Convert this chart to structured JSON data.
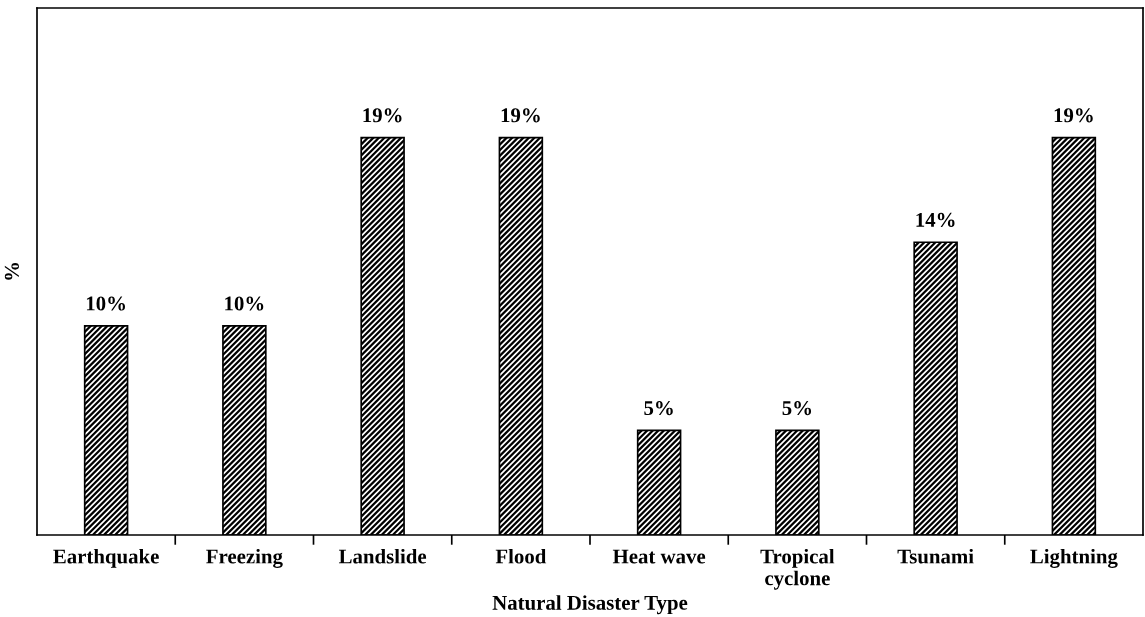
{
  "chart_data": {
    "type": "bar",
    "xlabel": "Natural Disaster Type",
    "ylabel": "%",
    "categories": [
      "Earthquake",
      "Freezing",
      "Landslide",
      "Flood",
      "Heat wave",
      "Tropical\ncyclone",
      "Tsunami",
      "Lightning"
    ],
    "values": [
      10,
      10,
      19,
      19,
      5,
      5,
      14,
      19
    ],
    "value_labels": [
      "10%",
      "10%",
      "19%",
      "19%",
      "5%",
      "5%",
      "14%",
      "19%"
    ],
    "color": "#000000",
    "ylim": [
      0,
      25.2
    ],
    "grid": false,
    "legend": false
  }
}
